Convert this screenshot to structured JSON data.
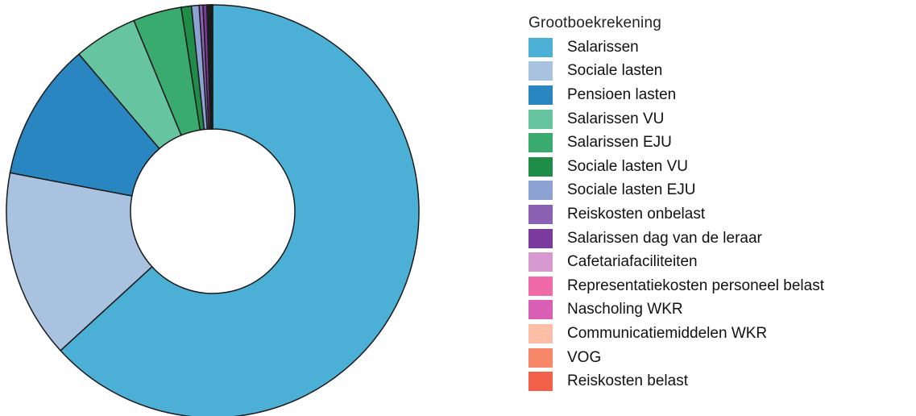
{
  "chart_data": {
    "type": "pie",
    "donut": true,
    "legend_title": "Grootboekrekening",
    "legend_position": "right",
    "slices": [
      {
        "label": "Salarissen",
        "value": 63.3,
        "color": "#4bafd6"
      },
      {
        "label": "Sociale lasten",
        "value": 14.8,
        "color": "#a8c2e0"
      },
      {
        "label": "Pensioen lasten",
        "value": 10.8,
        "color": "#2a86c1"
      },
      {
        "label": "Salarissen VU",
        "value": 5.0,
        "color": "#66c4a0"
      },
      {
        "label": "Salarissen EJU",
        "value": 3.8,
        "color": "#3aab6f"
      },
      {
        "label": "Sociale lasten VU",
        "value": 0.8,
        "color": "#1f8c47"
      },
      {
        "label": "Sociale lasten EJU",
        "value": 0.6,
        "color": "#8ca2d3"
      },
      {
        "label": "Reiskosten onbelast",
        "value": 0.3,
        "color": "#8b62b3"
      },
      {
        "label": "Salarissen dag van de leraar",
        "value": 0.3,
        "color": "#7a3a9e"
      },
      {
        "label": "Cafetariafaciliteiten",
        "value": 0.1,
        "color": "#d799d0"
      },
      {
        "label": "Representatiekosten personeel belast",
        "value": 0.1,
        "color": "#f06aa8"
      },
      {
        "label": "Nascholing WKR",
        "value": 0.1,
        "color": "#d85fb4"
      },
      {
        "label": "Communicatiemiddelen WKR",
        "value": 0.05,
        "color": "#fcbfa5"
      },
      {
        "label": "VOG",
        "value": 0.05,
        "color": "#f7896a"
      },
      {
        "label": "Reiskosten belast",
        "value": 0.05,
        "color": "#f2604a"
      }
    ]
  }
}
